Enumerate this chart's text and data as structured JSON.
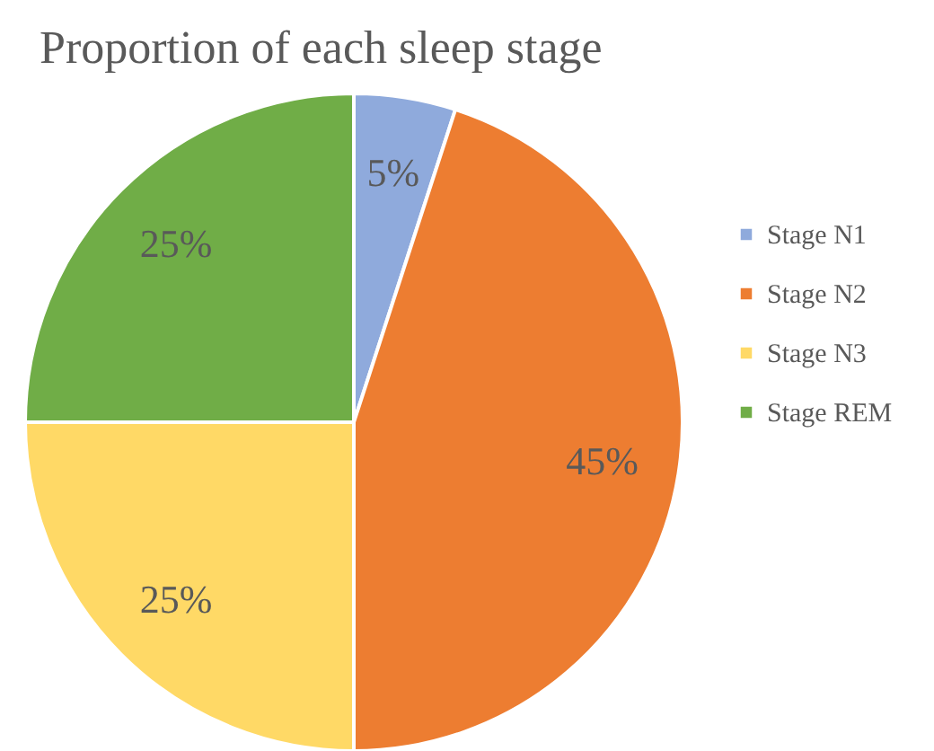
{
  "chart_data": {
    "type": "pie",
    "title": "Proportion of each sleep stage",
    "categories": [
      "Stage N1",
      "Stage N2",
      "Stage N3",
      "Stage REM"
    ],
    "values": [
      5,
      45,
      25,
      25
    ],
    "colors": [
      "#8faadc",
      "#ed7d31",
      "#ffd966",
      "#70ad47"
    ],
    "value_labels": [
      "5%",
      "45%",
      "25%",
      "25%"
    ],
    "legend": "right"
  }
}
